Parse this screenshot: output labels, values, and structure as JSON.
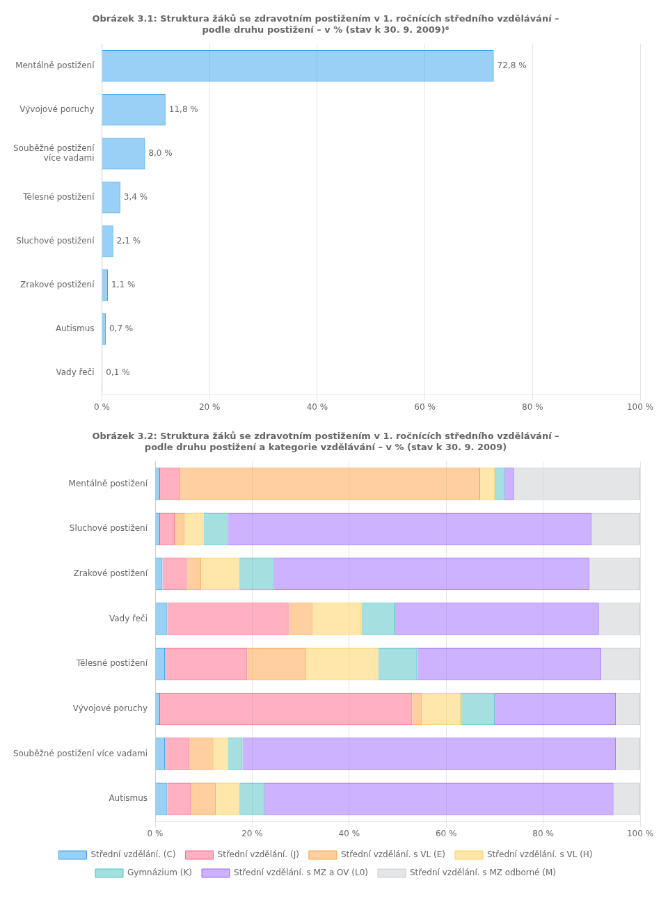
{
  "chart_data": [
    {
      "type": "bar",
      "orientation": "horizontal",
      "title": "Obrázek 3.1: Struktura žáků se zdravotním postižením v 1. ročnících středního vzdělávání –\npodle druhu postižení – v % (stav k 30. 9. 2009)⁶",
      "categories": [
        "Mentálně postižení",
        "Vývojové poruchy",
        "Souběžné postižení\nvíce vadami",
        "Tělesné postižení",
        "Sluchové postižení",
        "Zrakové postižení",
        "Autismus",
        "Vady řeči"
      ],
      "values": [
        72.8,
        11.8,
        8.0,
        3.4,
        2.1,
        1.1,
        0.7,
        0.1
      ],
      "value_labels": [
        "72,8 %",
        "11,8 %",
        "8,0 %",
        "3,4 %",
        "2,1 %",
        "1,1 %",
        "0,7 %",
        "0,1 %"
      ],
      "data_labels": true,
      "xlim": [
        0,
        100
      ],
      "xticks": [
        {
          "value": 0,
          "label": "0 %"
        },
        {
          "value": 20,
          "label": "20 %"
        },
        {
          "value": 40,
          "label": "40 %"
        },
        {
          "value": 60,
          "label": "60 %"
        },
        {
          "value": 80,
          "label": "80 %"
        },
        {
          "value": 100,
          "label": "100 %"
        }
      ],
      "grid": true
    },
    {
      "type": "bar",
      "orientation": "horizontal",
      "stacked": true,
      "title": "Obrázek 3.2: Struktura žáků se zdravotním postižením v 1. ročnících středního vzdělávání –\npodle druhu postižení a kategorie vzdělávání – v % (stav k 30. 9. 2009)",
      "categories": [
        "Mentálně postižení",
        "Sluchové postižení",
        "Zrakové postižení",
        "Vady řeči",
        "Tělesné postižení",
        "Vývojové poruchy",
        "Souběžné postižení více vadami",
        "Autismus"
      ],
      "series": [
        {
          "name": "Střední vzdělání. (C)",
          "values": [
            1.0,
            1.0,
            1.5,
            2.5,
            2.0,
            1.0,
            2.0,
            2.5
          ]
        },
        {
          "name": "Střední vzdělání. (J)",
          "values": [
            4.0,
            3.0,
            5.0,
            25.0,
            17.0,
            52.0,
            5.0,
            5.0
          ]
        },
        {
          "name": "Střední vzdělání. s VL (E)",
          "values": [
            62.0,
            2.0,
            3.0,
            5.0,
            12.0,
            2.0,
            5.0,
            5.0
          ]
        },
        {
          "name": "Střední vzdělání. s VL (H)",
          "values": [
            3.0,
            4.0,
            8.0,
            10.0,
            15.0,
            8.0,
            3.0,
            5.0
          ]
        },
        {
          "name": "Gymnázium (K)",
          "values": [
            2.0,
            5.0,
            7.0,
            7.0,
            8.0,
            7.0,
            3.0,
            5.0
          ]
        },
        {
          "name": "Střední vzdělání. s MZ a OV (L0)",
          "values": [
            2.0,
            75.0,
            65.0,
            42.0,
            38.0,
            25.0,
            77.0,
            72.0
          ]
        },
        {
          "name": "Střední vzdělání. s MZ odborné (M)",
          "values": [
            26.0,
            10.0,
            10.5,
            8.5,
            8.0,
            5.0,
            5.0,
            5.5
          ]
        }
      ],
      "xlim": [
        0,
        100
      ],
      "xticks": [
        {
          "value": 0,
          "label": "0 %"
        },
        {
          "value": 20,
          "label": "20 %"
        },
        {
          "value": 40,
          "label": "40 %"
        },
        {
          "value": 60,
          "label": "60 %"
        },
        {
          "value": 80,
          "label": "80 %"
        },
        {
          "value": 100,
          "label": "100 %"
        }
      ],
      "grid": true,
      "legend": "bottom"
    }
  ]
}
